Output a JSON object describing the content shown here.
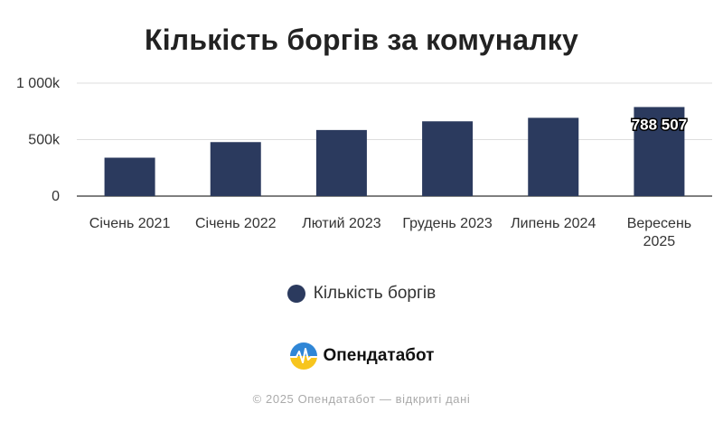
{
  "colors": {
    "bar": "#2b3a5e",
    "grid": "#dddddd",
    "axis": "#333333"
  },
  "chart_data": {
    "type": "bar",
    "title": "Кількість боргів за комуналку",
    "categories": [
      [
        "Січень 2021"
      ],
      [
        "Січень 2022"
      ],
      [
        "Лютий 2023"
      ],
      [
        "Грудень 2023"
      ],
      [
        "Липень 2024"
      ],
      [
        "Вересень",
        "2025"
      ]
    ],
    "series": [
      {
        "name": "Кількість боргів",
        "values": [
          340000,
          478000,
          585000,
          662000,
          693000,
          788507
        ]
      }
    ],
    "data_labels": [
      null,
      null,
      null,
      null,
      null,
      "788 507"
    ],
    "ylim": [
      0,
      1000000
    ],
    "y_ticks": [
      {
        "value": 0,
        "label": "0"
      },
      {
        "value": 500000,
        "label": "500k"
      },
      {
        "value": 1000000,
        "label": "1 000k"
      }
    ],
    "grid": true,
    "legend_position": "bottom"
  },
  "branding": {
    "logo_icon": "opendatabot-logo-icon",
    "name": "Опендатабот"
  },
  "footer": {
    "text": "© 2025 Опендатабот — відкриті дані"
  }
}
